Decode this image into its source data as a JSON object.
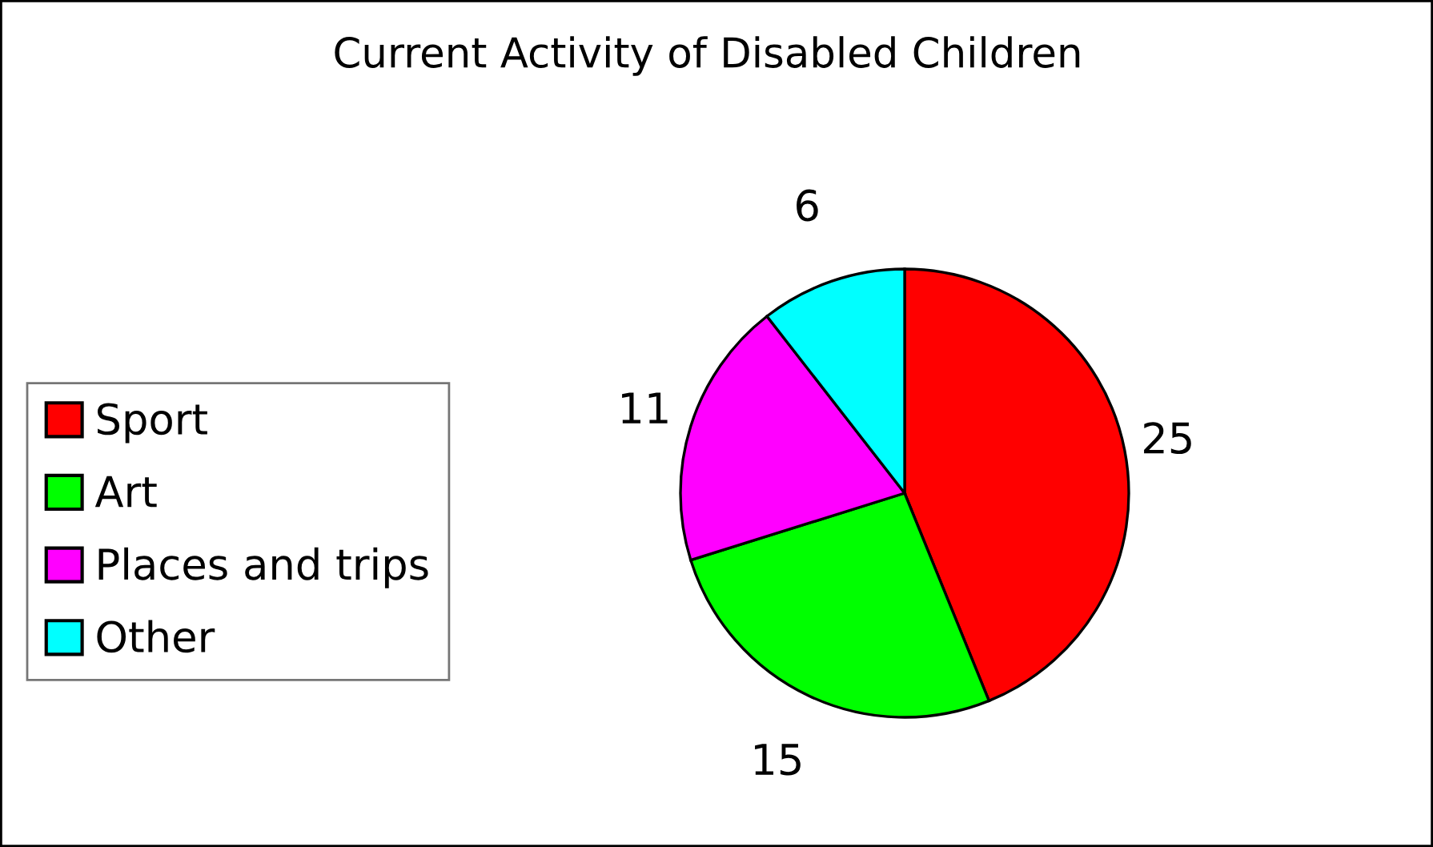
{
  "chart_data": {
    "type": "pie",
    "title": "Current Activity of Disabled Children",
    "categories": [
      "Sport",
      "Art",
      "Places and trips",
      "Other"
    ],
    "values": [
      25,
      15,
      11,
      6
    ],
    "colors": [
      "#ff0000",
      "#00ff00",
      "#ff00ff",
      "#00ffff"
    ],
    "data_labels": true,
    "legend": "left"
  }
}
